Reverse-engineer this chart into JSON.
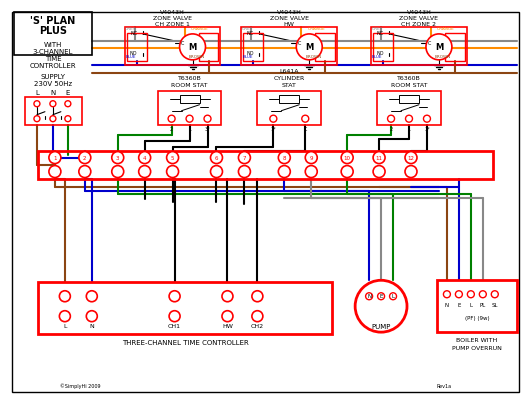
{
  "bg_color": "#ffffff",
  "border_color": "#000000",
  "red": "#FF0000",
  "wire": {
    "brown": "#8B4513",
    "blue": "#0000CC",
    "green": "#008000",
    "orange": "#FF8C00",
    "gray": "#888888",
    "black": "#000000",
    "cyan": "#00AAAA"
  },
  "title_lines": [
    "'S' PLAN",
    "PLUS"
  ],
  "with_lines": [
    "WITH",
    "3-CHANNEL",
    "TIME",
    "CONTROLLER"
  ],
  "supply_lines": [
    "SUPPLY",
    "230V 50Hz"
  ],
  "lne": [
    "L",
    "N",
    "E"
  ],
  "zv_labels": [
    [
      "V4043H",
      "ZONE VALVE",
      "CH ZONE 1"
    ],
    [
      "V4043H",
      "ZONE VALVE",
      "HW"
    ],
    [
      "V4043H",
      "ZONE VALVE",
      "CH ZONE 2"
    ]
  ],
  "stat_labels": [
    [
      "T6360B",
      "ROOM STAT"
    ],
    [
      "L641A",
      "CYLINDER",
      "STAT"
    ],
    [
      "T6360B",
      "ROOM STAT"
    ]
  ],
  "term_nums": [
    "1",
    "2",
    "3",
    "4",
    "5",
    "6",
    "7",
    "8",
    "9",
    "10",
    "11",
    "12"
  ],
  "ctrl_labels": [
    "L",
    "N",
    "CH1",
    "HW",
    "CH2"
  ],
  "ctrl_footer": "THREE-CHANNEL TIME CONTROLLER",
  "pump_label": "PUMP",
  "pump_terms": [
    "N",
    "E",
    "L"
  ],
  "boiler_terms": [
    "N",
    "E",
    "L",
    "PL",
    "SL"
  ],
  "boiler_sub": "(PF) (9w)",
  "boiler_label": [
    "BOILER WITH",
    "PUMP OVERRUN"
  ],
  "copyright": "©SimplyHi 2009",
  "rev": "Rev1a"
}
